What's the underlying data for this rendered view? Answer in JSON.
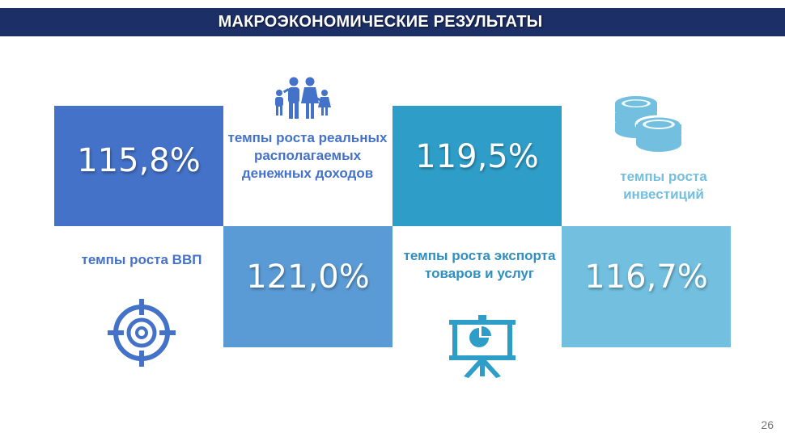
{
  "header": {
    "title": "МАКРОЭКОНОМИЧЕСКИЕ РЕЗУЛЬТАТЫ"
  },
  "tiles": {
    "gdp": {
      "value": "115,8%",
      "label": "темпы роста ВВП",
      "color": "#4472c8",
      "icon": "target-icon"
    },
    "income": {
      "value": "121,0%",
      "label": "темпы роста реальных располагаемых денежных доходов",
      "color": "#5b9bd5",
      "icon": "family-icon"
    },
    "export": {
      "value": "119,5%",
      "label": "темпы роста экспорта товаров и услуг",
      "color": "#2e9ec9",
      "icon": "presentation-chart-icon"
    },
    "invest": {
      "value": "116,7%",
      "label": "темпы роста инвестиций",
      "color": "#72bfdf",
      "icon": "coins-icon"
    }
  },
  "footer": {
    "page_number": "26"
  }
}
